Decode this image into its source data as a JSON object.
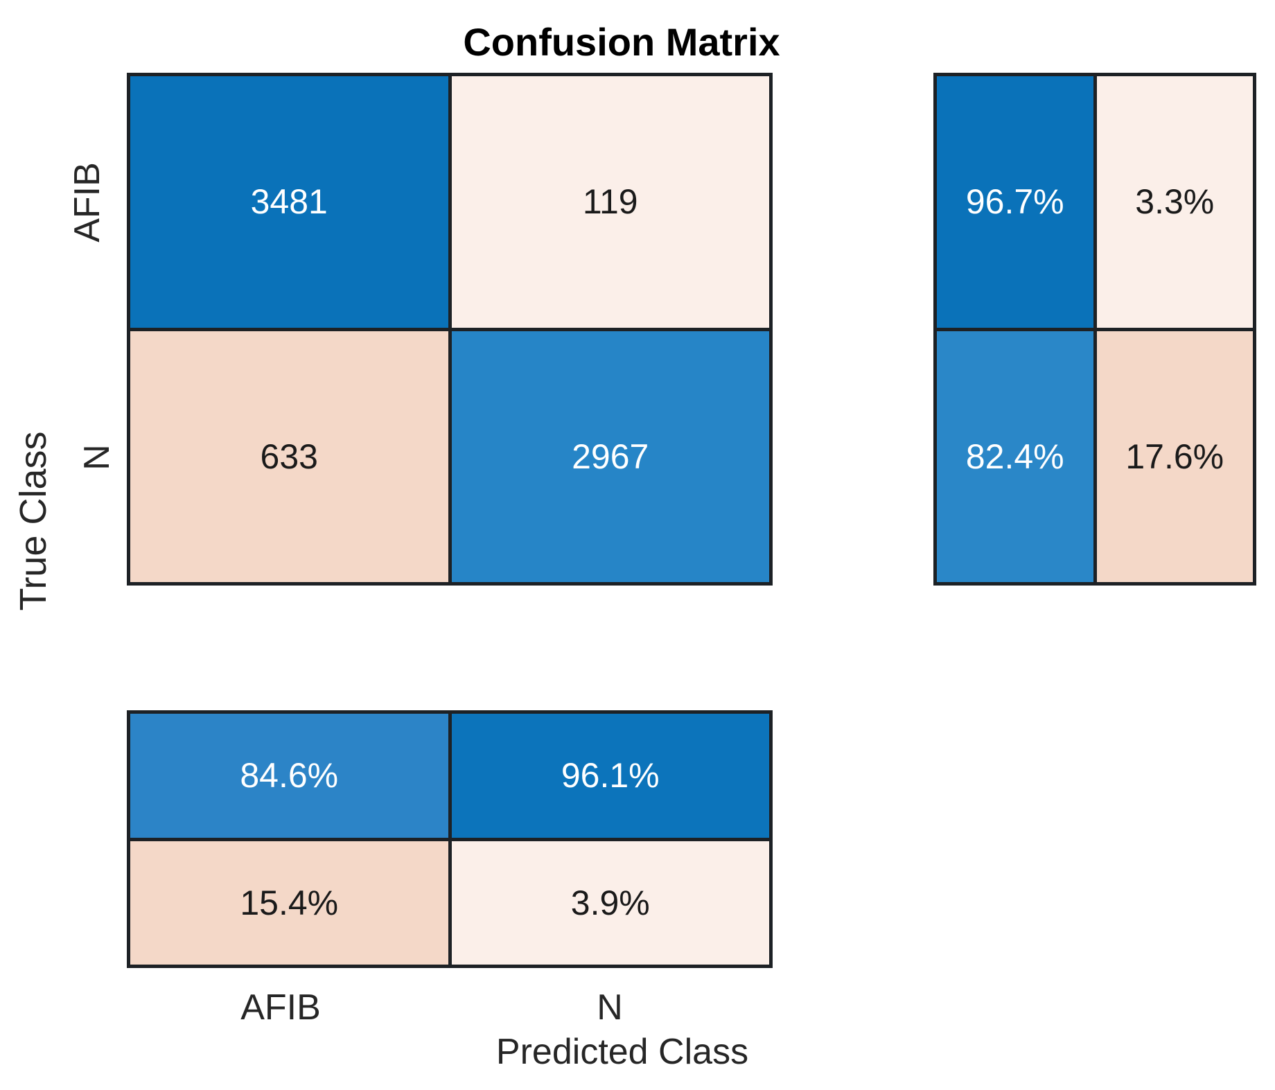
{
  "title": "Confusion Matrix",
  "x_axis": {
    "label": "Predicted Class",
    "tick_labels": [
      "AFIB",
      "N"
    ]
  },
  "y_axis": {
    "label": "True Class",
    "tick_labels": [
      "AFIB",
      "N"
    ]
  },
  "matrix_cells": [
    {
      "value": "3481",
      "bg": "#0a72b9",
      "fg": "#ffffff"
    },
    {
      "value": "119",
      "bg": "#fbefe9",
      "fg": "#1a1a1a"
    },
    {
      "value": "633",
      "bg": "#f4d8c8",
      "fg": "#1a1a1a"
    },
    {
      "value": "2967",
      "bg": "#2685c7",
      "fg": "#ffffff"
    }
  ],
  "row_summary_cells": [
    {
      "value": "96.7%",
      "bg": "#0a72b9",
      "fg": "#ffffff"
    },
    {
      "value": "3.3%",
      "bg": "#fbefe9",
      "fg": "#1a1a1a"
    },
    {
      "value": "82.4%",
      "bg": "#2a87c8",
      "fg": "#ffffff"
    },
    {
      "value": "17.6%",
      "bg": "#f4d8c8",
      "fg": "#1a1a1a"
    }
  ],
  "column_summary_cells": [
    {
      "value": "84.6%",
      "bg": "#2c84c7",
      "fg": "#ffffff"
    },
    {
      "value": "96.1%",
      "bg": "#0c74bb",
      "fg": "#ffffff"
    },
    {
      "value": "15.4%",
      "bg": "#f4d8c8",
      "fg": "#1a1a1a"
    },
    {
      "value": "3.9%",
      "bg": "#fbefe9",
      "fg": "#1a1a1a"
    }
  ],
  "chart_data": {
    "type": "heatmap",
    "title": "Confusion Matrix",
    "xlabel": "Predicted Class",
    "ylabel": "True Class",
    "x_categories": [
      "AFIB",
      "N"
    ],
    "y_categories": [
      "AFIB",
      "N"
    ],
    "counts": [
      [
        3481,
        119
      ],
      [
        633,
        2967
      ]
    ],
    "row_normalized_pct": [
      [
        96.7,
        3.3
      ],
      [
        82.4,
        17.6
      ]
    ],
    "column_normalized_pct": [
      [
        84.6,
        96.1
      ],
      [
        15.4,
        3.9
      ]
    ],
    "cell_colors": [
      [
        "#0a72b9",
        "#fbefe9"
      ],
      [
        "#f4d8c8",
        "#2685c7"
      ]
    ],
    "row_summary_colors": [
      [
        "#0a72b9",
        "#fbefe9"
      ],
      [
        "#2a87c8",
        "#f4d8c8"
      ]
    ],
    "column_summary_colors": [
      [
        "#2c84c7",
        "#0c74bb"
      ],
      [
        "#f4d8c8",
        "#fbefe9"
      ]
    ],
    "gridline_color": "#1d2125",
    "legend_position": "none",
    "grid": "off"
  }
}
